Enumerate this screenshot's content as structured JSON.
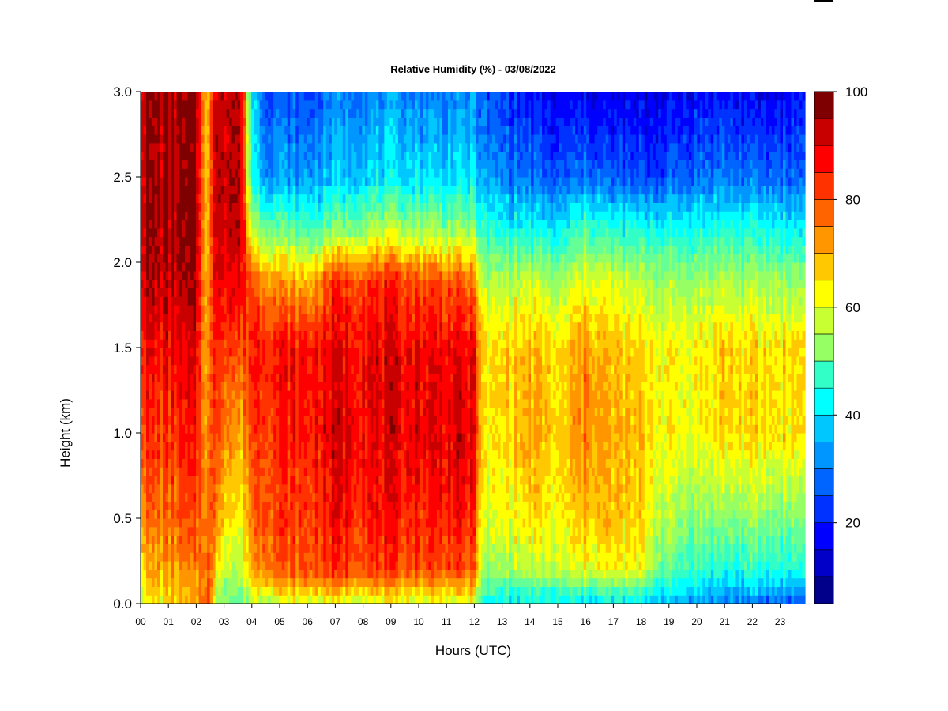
{
  "chart_data": {
    "type": "heatmap",
    "title": "Relative Humidity (%) - 03/08/2022",
    "xlabel": "Hours (UTC)",
    "ylabel": "Height (km)",
    "x_ticks": [
      "00",
      "01",
      "02",
      "03",
      "04",
      "05",
      "06",
      "07",
      "08",
      "09",
      "10",
      "11",
      "12",
      "13",
      "14",
      "15",
      "16",
      "17",
      "18",
      "19",
      "20",
      "21",
      "22",
      "23"
    ],
    "y_ticks": [
      "0.0",
      "0.5",
      "1.0",
      "1.5",
      "2.0",
      "2.5",
      "3.0"
    ],
    "xlim": [
      0,
      23.85
    ],
    "ylim": [
      0,
      3.0
    ],
    "colorbar": {
      "ticks": [
        "20",
        "40",
        "60",
        "80",
        "100"
      ],
      "range": [
        5,
        100
      ],
      "levels": 19,
      "colors": [
        "#00008b",
        "#0000c8",
        "#0000ff",
        "#0032ff",
        "#0064ff",
        "#0096ff",
        "#00c8ff",
        "#00ffff",
        "#32ffc8",
        "#64ff96",
        "#96ff64",
        "#c8ff32",
        "#ffff00",
        "#ffc800",
        "#ff9600",
        "#ff6400",
        "#ff3200",
        "#ff0000",
        "#c80000",
        "#7f0000"
      ]
    },
    "profiles": [
      {
        "hour": 0.0,
        "rh": [
          66,
          74,
          80,
          88,
          92,
          98,
          100,
          100,
          100
        ]
      },
      {
        "hour": 1.0,
        "rh": [
          70,
          76,
          82,
          88,
          93,
          98,
          100,
          100,
          100
        ]
      },
      {
        "hour": 2.0,
        "rh": [
          72,
          78,
          84,
          90,
          94,
          98,
          100,
          100,
          100
        ]
      },
      {
        "hour": 2.4,
        "rh": [
          90,
          86,
          82,
          78,
          76,
          74,
          72,
          72,
          72
        ]
      },
      {
        "hour": 2.7,
        "rh": [
          60,
          70,
          80,
          88,
          92,
          96,
          98,
          100,
          100
        ]
      },
      {
        "hour": 3.2,
        "rh": [
          55,
          62,
          70,
          80,
          88,
          96,
          100,
          100,
          100
        ]
      },
      {
        "hour": 3.6,
        "rh": [
          50,
          60,
          66,
          74,
          84,
          94,
          98,
          98,
          98
        ]
      },
      {
        "hour": 4.0,
        "rh": [
          60,
          78,
          82,
          88,
          92,
          84,
          60,
          45,
          40
        ]
      },
      {
        "hour": 4.5,
        "rh": [
          62,
          84,
          86,
          90,
          92,
          80,
          55,
          35,
          28
        ]
      },
      {
        "hour": 6.0,
        "rh": [
          64,
          84,
          86,
          90,
          92,
          72,
          48,
          32,
          24
        ]
      },
      {
        "hour": 7.0,
        "rh": [
          65,
          88,
          92,
          96,
          94,
          88,
          55,
          38,
          30
        ]
      },
      {
        "hour": 9.0,
        "rh": [
          64,
          86,
          90,
          94,
          94,
          88,
          60,
          40,
          32
        ]
      },
      {
        "hour": 11.0,
        "rh": [
          64,
          86,
          90,
          96,
          94,
          84,
          58,
          40,
          30
        ]
      },
      {
        "hour": 12.0,
        "rh": [
          62,
          84,
          88,
          94,
          92,
          80,
          55,
          40,
          32
        ]
      },
      {
        "hour": 12.3,
        "rh": [
          42,
          56,
          62,
          66,
          68,
          58,
          45,
          32,
          24
        ]
      },
      {
        "hour": 14.0,
        "rh": [
          42,
          60,
          70,
          76,
          74,
          62,
          42,
          28,
          18
        ]
      },
      {
        "hour": 15.0,
        "rh": [
          40,
          60,
          66,
          70,
          68,
          58,
          40,
          24,
          14
        ]
      },
      {
        "hour": 16.0,
        "rh": [
          40,
          66,
          74,
          80,
          78,
          66,
          50,
          30,
          16
        ]
      },
      {
        "hour": 17.0,
        "rh": [
          40,
          66,
          72,
          74,
          72,
          62,
          45,
          25,
          14
        ]
      },
      {
        "hour": 18.0,
        "rh": [
          38,
          66,
          70,
          72,
          70,
          60,
          44,
          24,
          14
        ]
      },
      {
        "hour": 18.8,
        "rh": [
          36,
          52,
          60,
          68,
          68,
          58,
          44,
          26,
          16
        ]
      },
      {
        "hour": 20.0,
        "rh": [
          32,
          48,
          56,
          66,
          68,
          58,
          44,
          28,
          18
        ]
      },
      {
        "hour": 21.0,
        "rh": [
          30,
          46,
          56,
          72,
          72,
          60,
          46,
          30,
          18
        ]
      },
      {
        "hour": 22.0,
        "rh": [
          28,
          46,
          56,
          70,
          70,
          58,
          44,
          28,
          16
        ]
      },
      {
        "hour": 23.85,
        "rh": [
          26,
          46,
          56,
          70,
          72,
          58,
          42,
          28,
          18
        ]
      }
    ],
    "profile_heights_km": [
      0.0,
      0.2,
      0.5,
      1.0,
      1.5,
      1.9,
      2.2,
      2.5,
      3.0
    ]
  }
}
